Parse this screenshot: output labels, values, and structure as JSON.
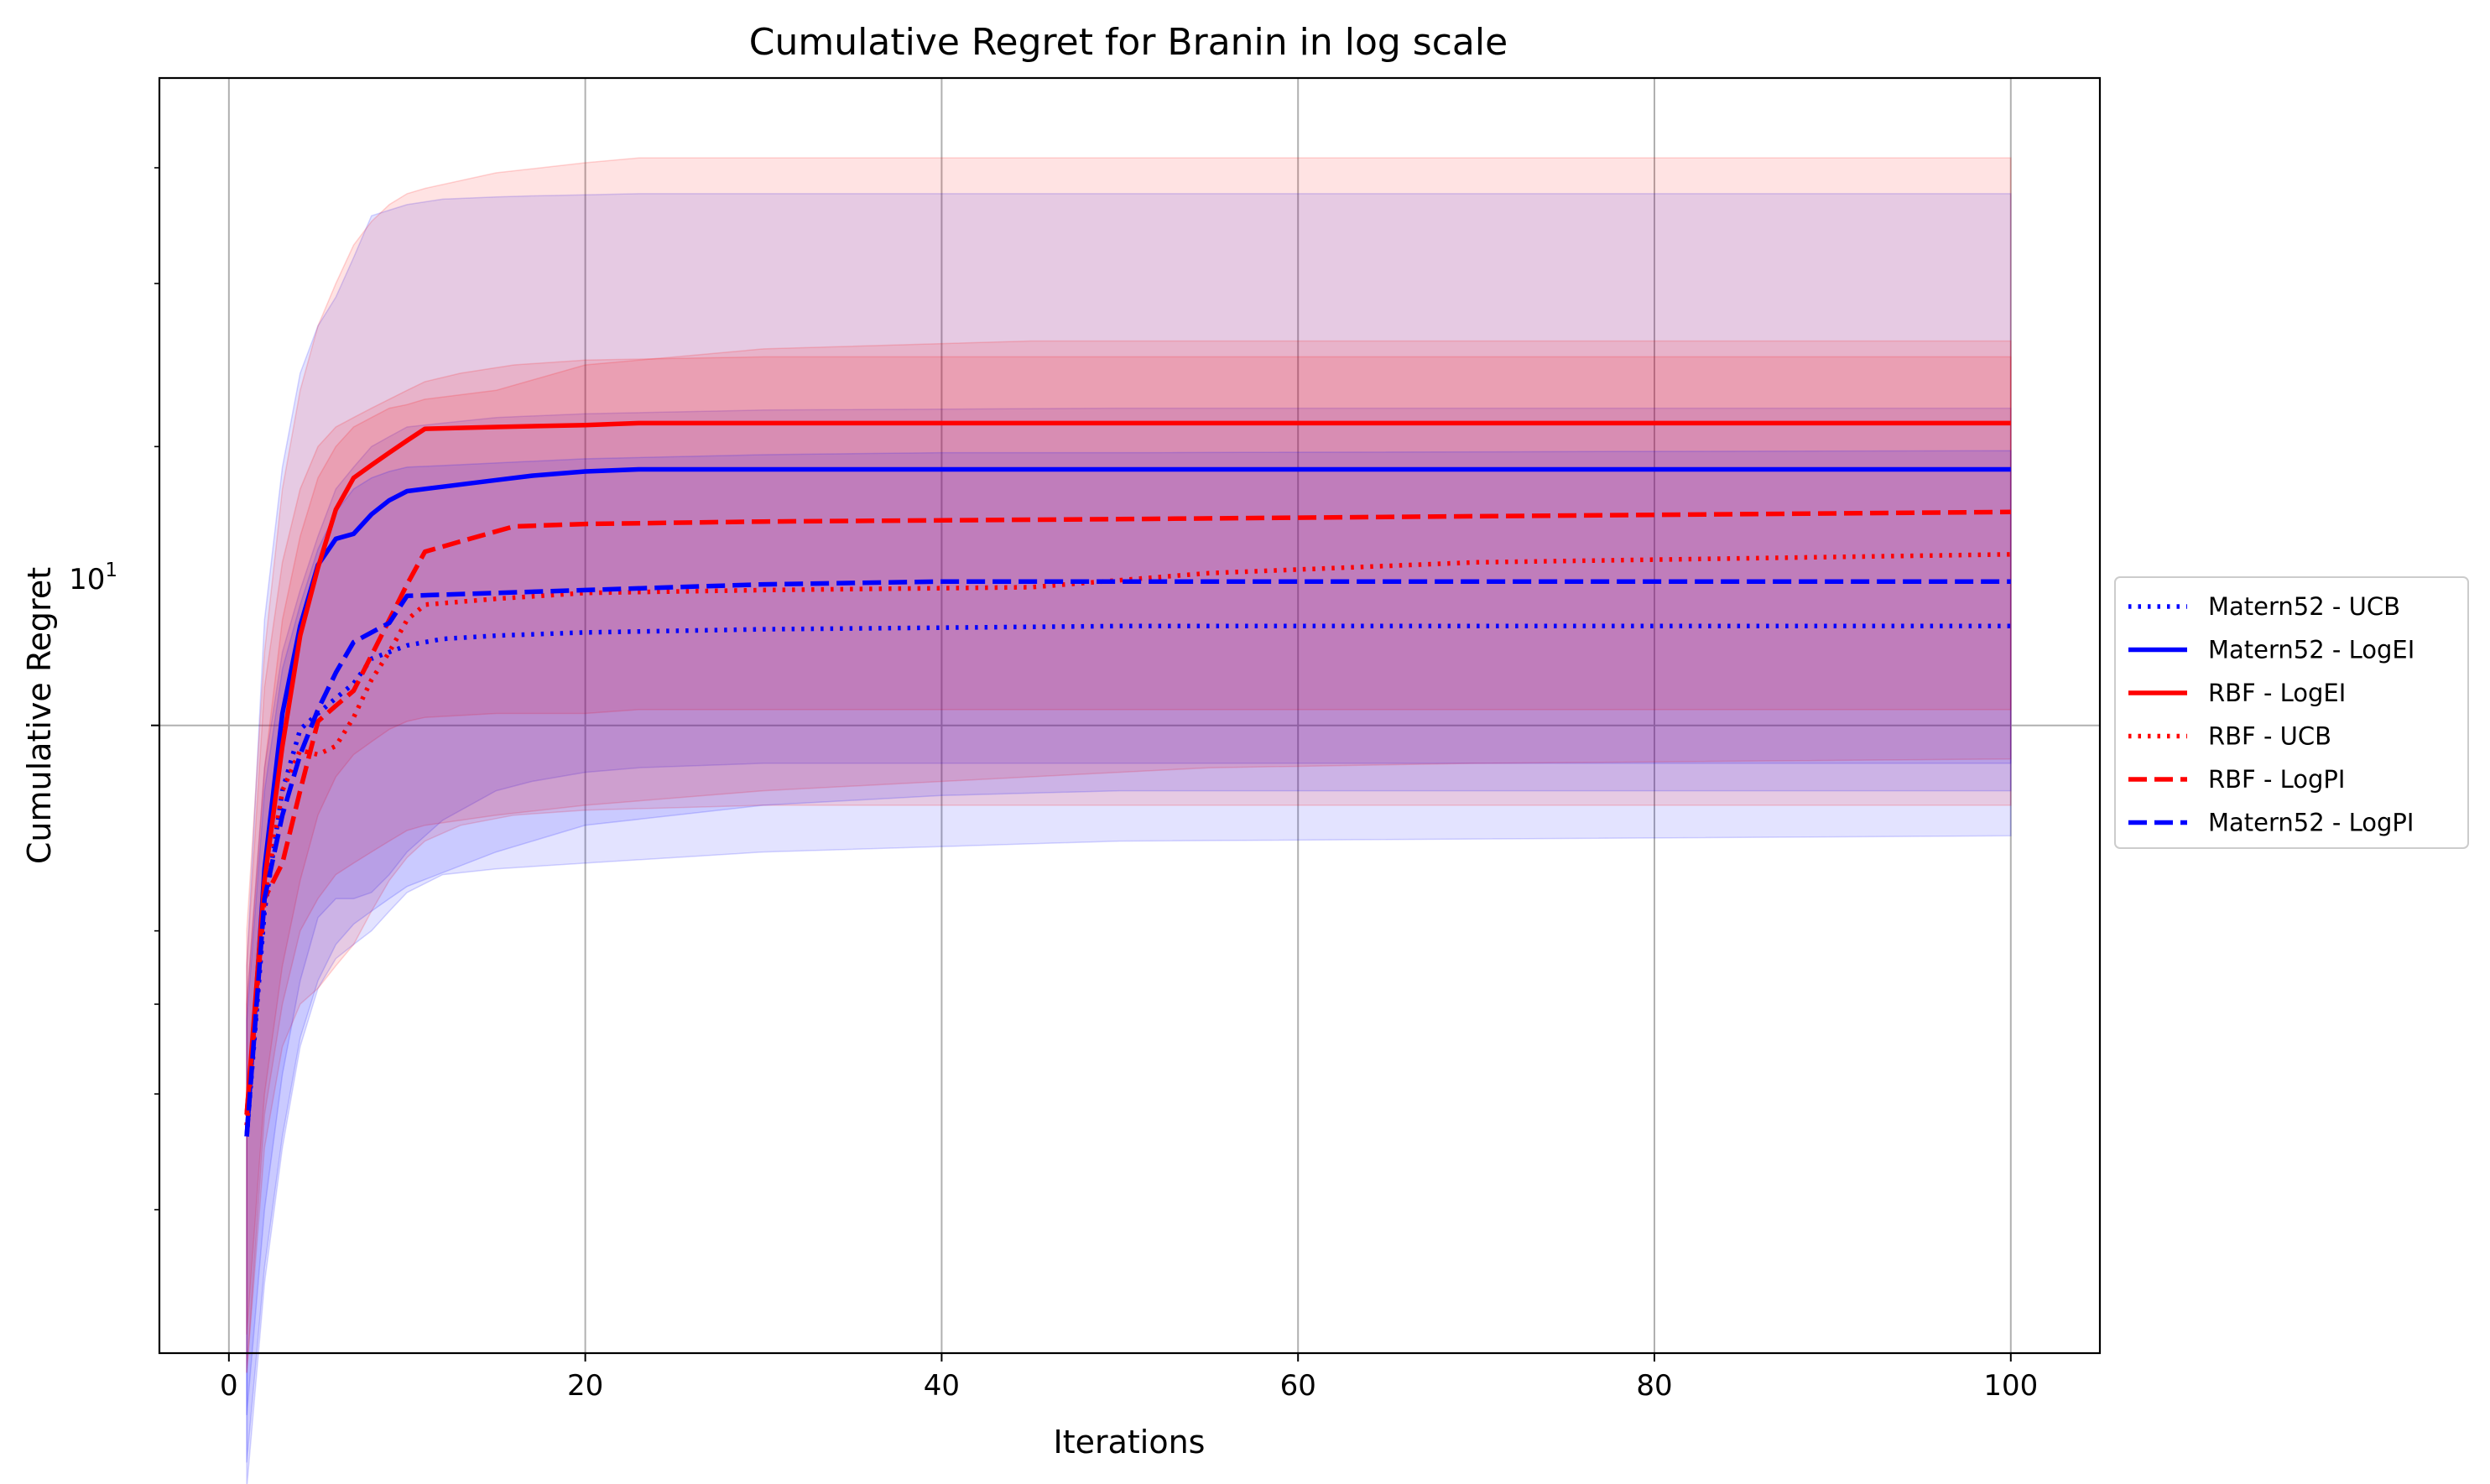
{
  "chart_data": {
    "type": "line",
    "title": "Cumulative Regret for Branin in log scale",
    "xlabel": "Iterations",
    "ylabel": "Cumulative Regret",
    "xlim": [
      -3.9,
      105
    ],
    "ylim": [
      2.1,
      50
    ],
    "yscale": "log",
    "grid": true,
    "legend_position": "center-right-outside",
    "x_ticks": [
      0,
      20,
      40,
      60,
      80,
      100
    ],
    "x_tick_labels": [
      "0",
      "20",
      "40",
      "60",
      "80",
      "100"
    ],
    "y_tick_major_label": "10",
    "y_tick_major_exponent": "1",
    "series": [
      {
        "name": "Matern52 - UCB",
        "color": "#0000ff",
        "style": "dotted",
        "x": [
          1,
          2,
          3,
          4,
          5,
          6,
          7,
          8,
          9,
          10,
          12,
          15,
          20,
          30,
          50,
          100
        ],
        "y": [
          3.6,
          6.3,
          8.5,
          9.9,
          10.3,
          10.7,
          11.1,
          11.8,
          12.0,
          12.2,
          12.4,
          12.5,
          12.6,
          12.7,
          12.8,
          12.8
        ],
        "band_low": [
          1.5,
          2.5,
          3.5,
          4.5,
          5.2,
          5.6,
          5.8,
          6.0,
          6.3,
          6.6,
          6.9,
          7.0,
          7.1,
          7.3,
          7.5,
          7.6
        ],
        "band_high": [
          5.0,
          9.0,
          12.0,
          14.0,
          16.0,
          18.0,
          19.0,
          20.0,
          20.5,
          21.0,
          21.2,
          21.5,
          21.7,
          21.9,
          22.0,
          22.0
        ]
      },
      {
        "name": "Matern52 - LogEI",
        "color": "#0000ff",
        "style": "solid",
        "x": [
          1,
          2,
          3,
          4,
          5,
          6,
          7,
          8,
          9,
          10,
          12,
          15,
          17,
          20,
          23,
          30,
          50,
          100
        ],
        "y": [
          3.6,
          7.0,
          10.3,
          12.8,
          14.9,
          15.9,
          16.1,
          16.9,
          17.5,
          17.9,
          18.1,
          18.4,
          18.6,
          18.8,
          18.9,
          18.9,
          18.9,
          18.9
        ],
        "band_low": [
          1.8,
          3.0,
          4.2,
          5.3,
          6.2,
          6.5,
          6.5,
          6.6,
          6.9,
          7.3,
          7.9,
          8.5,
          8.7,
          8.9,
          9.0,
          9.1,
          9.1,
          9.1
        ],
        "band_high": [
          5.5,
          13.0,
          19.0,
          24.0,
          27.0,
          29.0,
          32.0,
          35.5,
          36.0,
          36.5,
          37.0,
          37.2,
          37.3,
          37.4,
          37.5,
          37.5,
          37.5,
          37.5
        ]
      },
      {
        "name": "RBF - LogEI",
        "color": "#ff0000",
        "style": "solid",
        "x": [
          1,
          2,
          3,
          4,
          5,
          6,
          7,
          8,
          9,
          10,
          11,
          15,
          20,
          23,
          30,
          50,
          100
        ],
        "y": [
          3.8,
          6.8,
          9.5,
          12.5,
          14.8,
          17.1,
          18.5,
          19.1,
          19.7,
          20.3,
          20.9,
          21.0,
          21.1,
          21.2,
          21.2,
          21.2,
          21.2
        ],
        "band_low": [
          2.2,
          4.0,
          5.5,
          6.8,
          8.0,
          8.8,
          9.3,
          9.6,
          9.9,
          10.1,
          10.2,
          10.3,
          10.3,
          10.4,
          10.4,
          10.4,
          10.4
        ],
        "band_high": [
          6.0,
          12.0,
          18.0,
          23.0,
          27.0,
          30.0,
          33.0,
          35.0,
          36.5,
          37.5,
          38.0,
          39.5,
          40.5,
          41.0,
          41.0,
          41.0,
          41.0
        ]
      },
      {
        "name": "RBF - UCB",
        "color": "#ff0000",
        "style": "dotted",
        "x": [
          1,
          2,
          3,
          4,
          5,
          6,
          7,
          8,
          9,
          10,
          11,
          15,
          20,
          30,
          45,
          55,
          70,
          100
        ],
        "y": [
          3.7,
          6.5,
          8.5,
          9.4,
          9.3,
          9.5,
          10.2,
          11.2,
          12.0,
          13.0,
          13.5,
          13.7,
          13.9,
          14.0,
          14.1,
          14.6,
          15.0,
          15.3
        ],
        "band_low": [
          2.0,
          3.8,
          5.0,
          6.0,
          6.5,
          6.9,
          7.1,
          7.3,
          7.5,
          7.7,
          7.8,
          8.0,
          8.2,
          8.5,
          8.8,
          9.0,
          9.1,
          9.2
        ],
        "band_high": [
          5.0,
          9.0,
          13.0,
          16.0,
          18.5,
          20.0,
          21.0,
          21.5,
          22.0,
          22.2,
          22.5,
          23.0,
          24.5,
          25.5,
          26.0,
          26.0,
          26.0,
          26.0
        ]
      },
      {
        "name": "RBF - LogPI",
        "color": "#ff0000",
        "style": "dashed",
        "x": [
          1,
          2,
          3,
          4,
          5,
          6,
          7,
          8,
          9,
          10,
          11,
          13,
          16,
          20,
          30,
          50,
          100
        ],
        "y": [
          3.8,
          6.5,
          7.1,
          8.5,
          10.1,
          10.5,
          10.9,
          11.9,
          13.0,
          14.2,
          15.4,
          15.8,
          16.4,
          16.5,
          16.6,
          16.7,
          17.0
        ],
        "band_low": [
          2.0,
          3.5,
          4.5,
          5.0,
          5.2,
          5.5,
          5.8,
          6.3,
          6.8,
          7.2,
          7.5,
          7.8,
          8.0,
          8.1,
          8.2,
          8.2,
          8.2
        ],
        "band_high": [
          5.5,
          11.0,
          15.0,
          18.0,
          20.0,
          21.0,
          21.5,
          22.0,
          22.5,
          23.0,
          23.5,
          24.0,
          24.5,
          24.8,
          25.0,
          25.0,
          25.0
        ]
      },
      {
        "name": "Matern52 - LogPI",
        "color": "#0000ff",
        "style": "dashed",
        "x": [
          1,
          2,
          3,
          4,
          5,
          6,
          7,
          8,
          9,
          10,
          15,
          20,
          30,
          40,
          50,
          100
        ],
        "y": [
          3.6,
          6.5,
          8.0,
          9.3,
          10.4,
          11.4,
          12.3,
          12.6,
          12.9,
          13.8,
          13.9,
          14.0,
          14.2,
          14.3,
          14.3,
          14.3
        ],
        "band_low": [
          1.6,
          2.6,
          3.6,
          4.6,
          5.3,
          5.8,
          6.1,
          6.3,
          6.5,
          6.7,
          7.3,
          7.8,
          8.2,
          8.4,
          8.5,
          8.5
        ],
        "band_high": [
          4.8,
          8.5,
          11.5,
          13.5,
          15.5,
          17.0,
          18.0,
          18.5,
          18.8,
          19.0,
          19.2,
          19.4,
          19.6,
          19.7,
          19.7,
          19.8
        ]
      }
    ]
  }
}
